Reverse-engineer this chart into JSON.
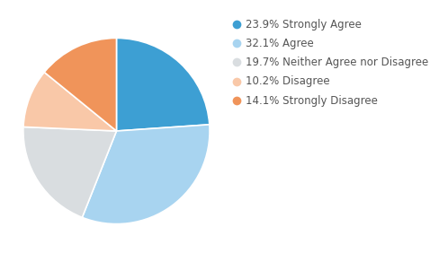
{
  "labels": [
    "23.9% Strongly Agree",
    "32.1% Agree",
    "19.7% Neither Agree nor Disagree",
    "10.2% Disagree",
    "14.1% Strongly Disagree"
  ],
  "values": [
    23.9,
    32.1,
    19.7,
    10.2,
    14.1
  ],
  "colors": [
    "#3d9fd3",
    "#a8d4f0",
    "#d9dde0",
    "#f9c8a8",
    "#f0945a"
  ],
  "background_color": "#ffffff",
  "legend_fontsize": 8.5,
  "startangle": 90
}
